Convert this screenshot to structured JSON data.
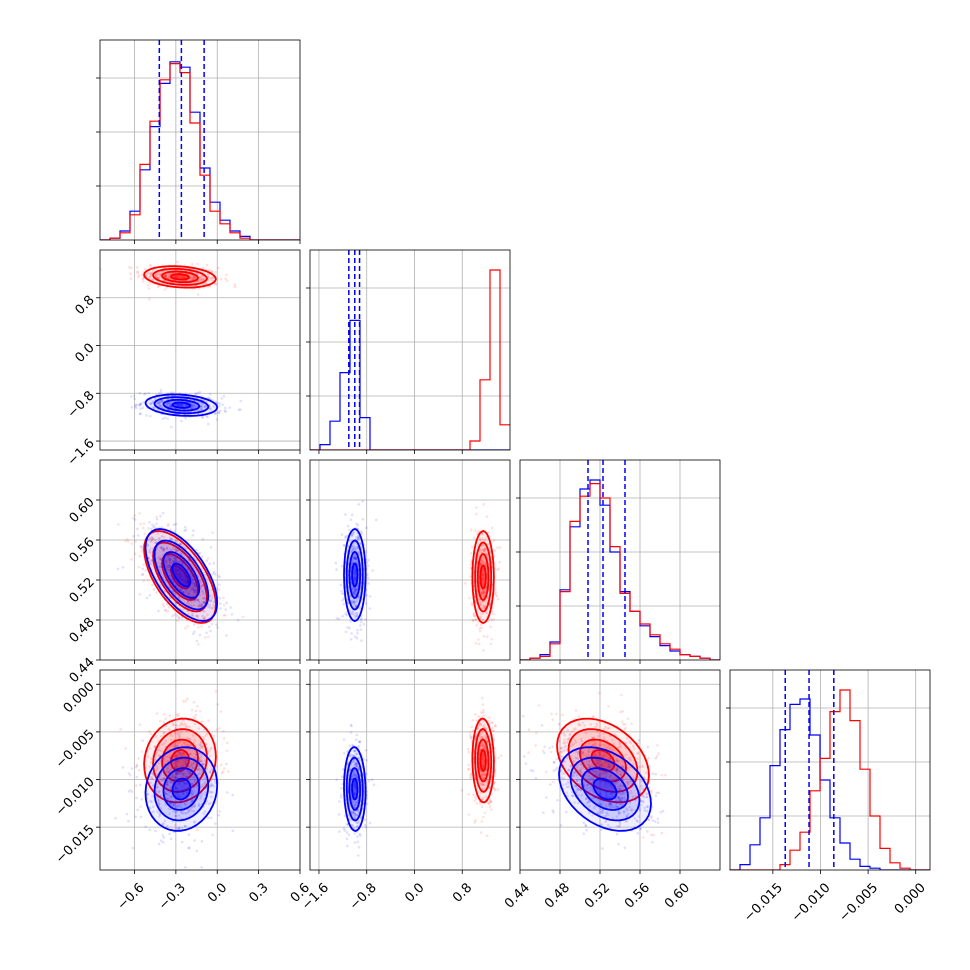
{
  "colors": {
    "series_red": "#ff0000",
    "series_blue": "#0000ff",
    "grid": "#b0b0b0"
  },
  "chart_data": {
    "type": "corner",
    "title": "",
    "grid": true,
    "legend": "none",
    "parameters": [
      {
        "range": [
          -0.85,
          0.6
        ],
        "ticks": [
          -0.6,
          -0.3,
          0.0,
          0.3,
          0.6
        ],
        "tick_labels": [
          "−0.6",
          "−0.3",
          "0.0",
          "0.3",
          "0.6"
        ]
      },
      {
        "range": [
          -1.75,
          1.6
        ],
        "ticks": [
          -1.6,
          -0.8,
          0.0,
          0.8
        ],
        "tick_labels": [
          "−1.6",
          "−0.8",
          "0.0",
          "0.8"
        ]
      },
      {
        "range": [
          0.44,
          0.64
        ],
        "ticks": [
          0.44,
          0.48,
          0.52,
          0.56,
          0.6
        ],
        "tick_labels": [
          "0.44",
          "0.48",
          "0.52",
          "0.56",
          "0.60"
        ]
      },
      {
        "range": [
          -0.0195,
          0.0015
        ],
        "ticks": [
          -0.015,
          -0.01,
          -0.005,
          0.0
        ],
        "tick_labels": [
          "−0.015",
          "−0.010",
          "−0.005",
          "0.000"
        ]
      }
    ],
    "series": [
      {
        "name": "",
        "color": "#ff0000",
        "mean": [
          -0.27,
          1.15,
          0.523,
          -0.008
        ],
        "sd": [
          0.13,
          0.09,
          0.023,
          0.0022
        ]
      },
      {
        "name": "",
        "color": "#0000ff",
        "mean": [
          -0.26,
          -1.0,
          0.525,
          -0.011
        ],
        "sd": [
          0.13,
          0.09,
          0.023,
          0.0022
        ]
      }
    ],
    "histograms": [
      {
        "edges": [
          -0.85,
          -0.7775,
          -0.705,
          -0.6325,
          -0.56,
          -0.4875,
          -0.415,
          -0.3425,
          -0.27,
          -0.1975,
          -0.125,
          -0.0525,
          0.02,
          0.0925,
          0.165,
          0.2375,
          0.31,
          0.3825,
          0.455,
          0.5275,
          0.6
        ],
        "red": [
          0.0,
          0.01,
          0.04,
          0.14,
          0.42,
          0.66,
          0.89,
          0.98,
          0.93,
          0.65,
          0.36,
          0.16,
          0.09,
          0.04,
          0.01,
          0.0,
          0.0,
          0.0,
          0.0,
          0.0
        ],
        "blue": [
          0.0,
          0.01,
          0.05,
          0.16,
          0.39,
          0.63,
          0.87,
          0.99,
          0.96,
          0.71,
          0.4,
          0.21,
          0.11,
          0.05,
          0.02,
          0.0,
          0.0,
          0.0,
          0.0,
          0.0
        ]
      },
      {
        "edges": [
          -1.75,
          -1.5825,
          -1.415,
          -1.2475,
          -1.08,
          -0.9125,
          -0.745,
          -0.5775,
          -0.41,
          -0.2425,
          -0.075,
          0.0925,
          0.26,
          0.4275,
          0.595,
          0.7625,
          0.93,
          1.0975,
          1.265,
          1.4325,
          1.6
        ],
        "red": [
          0,
          0,
          0,
          0,
          0,
          0,
          0,
          0,
          0,
          0,
          0,
          0,
          0,
          0,
          0,
          0,
          0.05,
          0.39,
          1.0,
          0.14
        ],
        "blue": [
          0,
          0.03,
          0.16,
          0.43,
          0.72,
          0.18,
          0,
          0,
          0,
          0,
          0,
          0,
          0,
          0,
          0,
          0,
          0,
          0,
          0,
          0
        ]
      },
      {
        "edges": [
          0.44,
          0.45,
          0.46,
          0.47,
          0.48,
          0.49,
          0.5,
          0.51,
          0.52,
          0.53,
          0.54,
          0.55,
          0.56,
          0.57,
          0.58,
          0.59,
          0.6,
          0.61,
          0.62,
          0.63,
          0.64
        ],
        "red": [
          0,
          0.01,
          0.02,
          0.09,
          0.38,
          0.77,
          0.91,
          0.98,
          0.9,
          0.63,
          0.37,
          0.27,
          0.2,
          0.14,
          0.09,
          0.06,
          0.03,
          0.02,
          0.01,
          0
        ],
        "blue": [
          0,
          0.01,
          0.03,
          0.1,
          0.39,
          0.74,
          0.95,
          1.0,
          0.86,
          0.6,
          0.38,
          0.27,
          0.19,
          0.13,
          0.08,
          0.05,
          0.03,
          0.02,
          0.01,
          0
        ]
      },
      {
        "edges": [
          -0.0195,
          -0.01845,
          -0.0174,
          -0.01635,
          -0.0153,
          -0.01425,
          -0.0132,
          -0.01215,
          -0.0111,
          -0.01005,
          -0.009,
          -0.00795,
          -0.0069,
          -0.00585,
          -0.0048,
          -0.00375,
          -0.0027,
          -0.00165,
          -0.0006,
          0.00045,
          0.0015
        ],
        "red": [
          0,
          0,
          0,
          0,
          0,
          0.03,
          0.11,
          0.21,
          0.44,
          0.62,
          0.88,
          1.0,
          0.83,
          0.56,
          0.3,
          0.12,
          0.04,
          0.01,
          0,
          0
        ],
        "blue": [
          0,
          0.03,
          0.14,
          0.29,
          0.58,
          0.78,
          0.92,
          0.95,
          0.75,
          0.5,
          0.29,
          0.15,
          0.06,
          0.02,
          0.01,
          0,
          0,
          0,
          0,
          0
        ]
      }
    ],
    "quantile_lines": [
      [
        -0.42,
        -0.26,
        -0.095
      ],
      [
        -1.1,
        -1.0,
        -0.92
      ],
      [
        0.508,
        0.523,
        0.545
      ],
      [
        -0.0137,
        -0.0112,
        -0.0086
      ]
    ]
  }
}
